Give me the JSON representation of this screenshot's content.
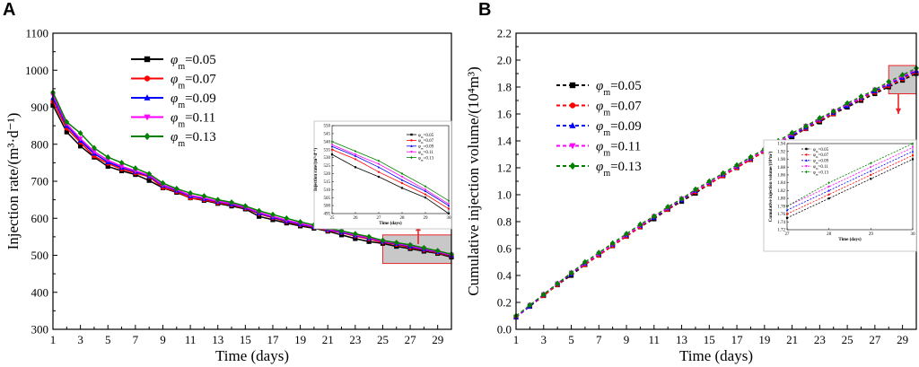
{
  "chart_data": [
    {
      "type": "line",
      "panel_label": "A",
      "xlabel": "Time (days)",
      "ylabel": "Injection rate/(m³·d⁻¹)",
      "xlim": [
        1,
        30
      ],
      "ylim": [
        300,
        1100
      ],
      "xticks": [
        1,
        3,
        5,
        7,
        9,
        11,
        13,
        15,
        17,
        19,
        21,
        23,
        25,
        27,
        29
      ],
      "yticks": [
        300,
        400,
        500,
        600,
        700,
        800,
        900,
        1000,
        1100
      ],
      "x": [
        1,
        2,
        3,
        4,
        5,
        6,
        7,
        8,
        9,
        10,
        11,
        12,
        13,
        14,
        15,
        16,
        17,
        18,
        19,
        20,
        21,
        22,
        23,
        24,
        25,
        26,
        27,
        28,
        29,
        30
      ],
      "series": [
        {
          "name": "φm=0.05",
          "legend_main": "φ",
          "legend_sub": "m",
          "legend_value": "=0.05",
          "color": "#000000",
          "marker": "square",
          "values": [
            905,
            833,
            795,
            765,
            740,
            728,
            718,
            702,
            682,
            670,
            655,
            648,
            640,
            633,
            625,
            605,
            596,
            587,
            579,
            573,
            565,
            555,
            545,
            537,
            532,
            524,
            518,
            511,
            505,
            495
          ]
        },
        {
          "name": "φm=0.07",
          "legend_main": "φ",
          "legend_sub": "m",
          "legend_value": "=0.07",
          "color": "#ff0000",
          "marker": "circle",
          "values": [
            915,
            843,
            805,
            768,
            748,
            733,
            722,
            712,
            683,
            672,
            655,
            650,
            642,
            636,
            627,
            612,
            601,
            591,
            582,
            576,
            567,
            561,
            552,
            544,
            535,
            529,
            521,
            514,
            507,
            498
          ]
        },
        {
          "name": "φm=0.09",
          "legend_main": "φ",
          "legend_sub": "m",
          "legend_value": "=0.09",
          "color": "#0000ff",
          "marker": "triangle",
          "values": [
            925,
            850,
            810,
            775,
            752,
            737,
            726,
            714,
            688,
            675,
            660,
            653,
            645,
            638,
            629,
            614,
            603,
            593,
            584,
            577,
            569,
            562,
            554,
            546,
            537,
            531,
            524,
            516,
            509,
            500
          ]
        },
        {
          "name": "φm=0.11",
          "legend_main": "φ",
          "legend_sub": "m",
          "legend_value": "=0.11",
          "color": "#ff00ff",
          "marker": "triangle-down",
          "values": [
            932,
            855,
            815,
            780,
            757,
            740,
            728,
            716,
            690,
            677,
            662,
            655,
            646,
            640,
            630,
            616,
            605,
            595,
            586,
            578,
            570,
            564,
            555,
            547,
            538,
            532,
            526,
            518,
            510,
            501
          ]
        },
        {
          "name": "φm=0.13",
          "legend_main": "φ",
          "legend_sub": "m",
          "legend_value": "=0.13",
          "color": "#008000",
          "marker": "diamond",
          "values": [
            940,
            860,
            830,
            790,
            765,
            750,
            735,
            720,
            695,
            680,
            668,
            660,
            650,
            643,
            633,
            620,
            610,
            600,
            590,
            582,
            573,
            566,
            558,
            550,
            540,
            534,
            528,
            520,
            512,
            503
          ]
        }
      ],
      "zoom_region": {
        "x": [
          25,
          30
        ],
        "y": [
          478,
          555
        ]
      },
      "inset": {
        "xlabel": "Time (days)",
        "ylabel": "Injection rate/(m³·d⁻¹)",
        "xlim": [
          25,
          30
        ],
        "ylim": [
          495,
          550
        ],
        "xticks": [
          25,
          26,
          27,
          28,
          29,
          30
        ],
        "yticks": [
          495,
          500,
          505,
          510,
          515,
          520,
          525,
          530,
          535,
          540,
          545,
          550
        ],
        "legend": [
          "φm=0.05",
          "φm=0.07",
          "φm=0.09",
          "φm=0.11",
          "φm=0.13"
        ]
      }
    },
    {
      "type": "line",
      "panel_label": "B",
      "xlabel": "Time (days)",
      "ylabel": "Cumulative injection volume/(10⁴m³)",
      "xlim": [
        1,
        30
      ],
      "ylim": [
        0.0,
        2.2
      ],
      "xticks": [
        1,
        3,
        5,
        7,
        9,
        11,
        13,
        15,
        17,
        19,
        21,
        23,
        25,
        27,
        29
      ],
      "yticks": [
        0.0,
        0.2,
        0.4,
        0.6,
        0.8,
        1.0,
        1.2,
        1.4,
        1.6,
        1.8,
        2.0,
        2.2
      ],
      "ytick_labels": [
        "0.0",
        "0.2",
        "0.4",
        "0.6",
        "0.8",
        "1.0",
        "1.2",
        "1.4",
        "1.6",
        "1.8",
        "2.0",
        "2.2"
      ],
      "x": [
        1,
        2,
        3,
        4,
        5,
        6,
        7,
        8,
        9,
        10,
        11,
        12,
        13,
        14,
        15,
        16,
        17,
        18,
        19,
        20,
        21,
        22,
        23,
        24,
        25,
        26,
        27,
        28,
        29,
        30
      ],
      "series": [
        {
          "name": "φm=0.05",
          "legend_main": "φ",
          "legend_sub": "m",
          "legend_value": "=0.05",
          "color": "#000000",
          "marker": "square",
          "values": [
            0.09,
            0.17,
            0.25,
            0.33,
            0.4,
            0.48,
            0.55,
            0.62,
            0.69,
            0.76,
            0.82,
            0.89,
            0.95,
            1.01,
            1.08,
            1.14,
            1.2,
            1.26,
            1.32,
            1.37,
            1.43,
            1.49,
            1.54,
            1.6,
            1.65,
            1.7,
            1.75,
            1.8,
            1.85,
            1.9
          ]
        },
        {
          "name": "φm=0.07",
          "legend_main": "φ",
          "legend_sub": "m",
          "legend_value": "=0.07",
          "color": "#ff0000",
          "marker": "circle",
          "values": [
            0.09,
            0.17,
            0.25,
            0.33,
            0.41,
            0.48,
            0.55,
            0.62,
            0.69,
            0.76,
            0.83,
            0.89,
            0.96,
            1.02,
            1.08,
            1.14,
            1.2,
            1.26,
            1.32,
            1.38,
            1.44,
            1.49,
            1.55,
            1.6,
            1.66,
            1.71,
            1.76,
            1.81,
            1.86,
            1.91
          ]
        },
        {
          "name": "φm=0.09",
          "legend_main": "φ",
          "legend_sub": "m",
          "legend_value": "=0.09",
          "color": "#0000ff",
          "marker": "triangle",
          "values": [
            0.09,
            0.17,
            0.26,
            0.34,
            0.41,
            0.49,
            0.56,
            0.63,
            0.7,
            0.77,
            0.83,
            0.9,
            0.96,
            1.03,
            1.09,
            1.15,
            1.21,
            1.27,
            1.33,
            1.39,
            1.44,
            1.5,
            1.56,
            1.61,
            1.66,
            1.72,
            1.77,
            1.82,
            1.87,
            1.92
          ]
        },
        {
          "name": "φm=0.11",
          "legend_main": "φ",
          "legend_sub": "m",
          "legend_value": "=0.11",
          "color": "#ff00ff",
          "marker": "triangle-down",
          "values": [
            0.09,
            0.18,
            0.26,
            0.34,
            0.42,
            0.49,
            0.56,
            0.63,
            0.7,
            0.77,
            0.84,
            0.9,
            0.97,
            1.03,
            1.09,
            1.15,
            1.21,
            1.27,
            1.33,
            1.39,
            1.45,
            1.51,
            1.56,
            1.62,
            1.67,
            1.72,
            1.78,
            1.83,
            1.88,
            1.93
          ]
        },
        {
          "name": "φm=0.13",
          "legend_main": "φ",
          "legend_sub": "m",
          "legend_value": "=0.13",
          "color": "#008000",
          "marker": "diamond",
          "values": [
            0.1,
            0.18,
            0.26,
            0.34,
            0.42,
            0.5,
            0.57,
            0.64,
            0.71,
            0.78,
            0.84,
            0.91,
            0.97,
            1.04,
            1.1,
            1.16,
            1.22,
            1.28,
            1.34,
            1.4,
            1.46,
            1.51,
            1.57,
            1.62,
            1.68,
            1.73,
            1.78,
            1.84,
            1.89,
            1.94
          ]
        }
      ],
      "zoom_region": {
        "x": [
          28,
          30
        ],
        "y": [
          1.75,
          1.96
        ]
      },
      "inset": {
        "xlabel": "Time (days)",
        "ylabel": "Cumulative injection volume/(10⁴m³)",
        "xlim": [
          27,
          30
        ],
        "ylim": [
          1.72,
          1.94
        ],
        "xticks": [
          27,
          28,
          29,
          30
        ],
        "yticks": [
          1.72,
          1.74,
          1.76,
          1.78,
          1.8,
          1.82,
          1.84,
          1.86,
          1.88,
          1.9,
          1.92,
          1.94
        ],
        "ytick_labels": [
          "1.72",
          "1.74",
          "1.76",
          "1.78",
          "1.80",
          "1.82",
          "1.84",
          "1.86",
          "1.88",
          "1.90",
          "1.92",
          "1.94"
        ],
        "legend": [
          "φm=0.05",
          "φm=0.07",
          "φm=0.09",
          "φm=0.11",
          "φm=0.13"
        ]
      }
    }
  ]
}
